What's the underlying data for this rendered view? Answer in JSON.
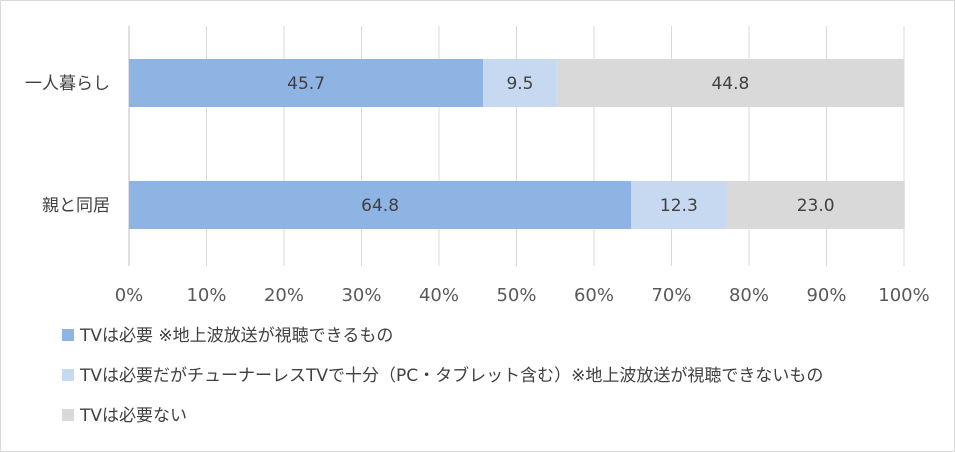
{
  "chart_data": {
    "type": "bar",
    "orientation": "horizontal",
    "stacked": true,
    "categories": [
      "一人暮らし",
      "親と同居"
    ],
    "series": [
      {
        "name": "TVは必要 ※地上波放送が視聴できるもの",
        "values": [
          45.7,
          64.8
        ],
        "color": "#8eb4e3"
      },
      {
        "name": "TVは必要だがチューナーレスTVで十分（PC・タブレット含む）※地上波放送が視聴できないもの",
        "values": [
          9.5,
          12.3
        ],
        "color": "#c6d9f1"
      },
      {
        "name": "TVは必要ない",
        "values": [
          44.8,
          23.0
        ],
        "color": "#d9d9d9"
      }
    ],
    "data_labels": [
      [
        "45.7",
        "64.8"
      ],
      [
        "9.5",
        "12.3"
      ],
      [
        "44.8",
        "23.0"
      ]
    ],
    "xticks": [
      "0%",
      "10%",
      "20%",
      "30%",
      "40%",
      "50%",
      "60%",
      "70%",
      "80%",
      "90%",
      "100%"
    ],
    "xlim": [
      0,
      100
    ],
    "grid": true,
    "legend_position": "bottom-left"
  }
}
